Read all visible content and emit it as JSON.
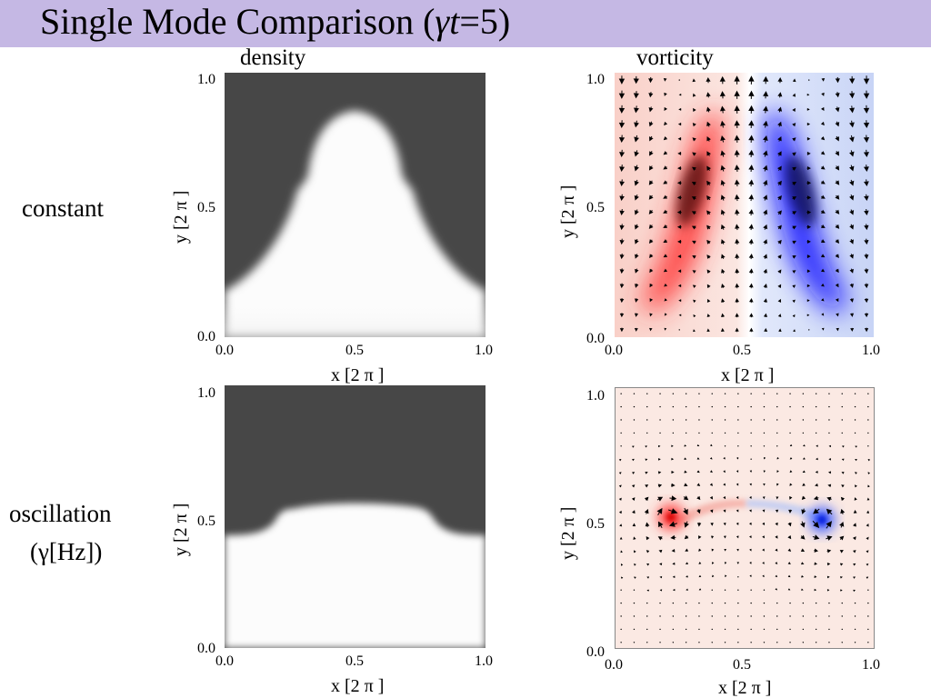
{
  "header": {
    "title_prefix": "Single Mode Comparison  (",
    "title_gamma": "γ",
    "title_t": "t",
    "title_suffix": "=5)",
    "background": "#c5b8e4"
  },
  "columns": {
    "left": "density",
    "right": "vorticity"
  },
  "rows": {
    "top": "constant",
    "bottom_line1": "oscillation",
    "bottom_line2": "(γ[Hz])"
  },
  "axes": {
    "xlabel": "x   [2 π ]",
    "ylabel": "y   [2 π ]",
    "ticks": [
      "0.0",
      "0.5",
      "1.0"
    ]
  },
  "colors": {
    "dense": "#474747",
    "light": "#fcfcfc",
    "vort_pos": "#e80000",
    "vort_neg": "#0010e0"
  }
}
